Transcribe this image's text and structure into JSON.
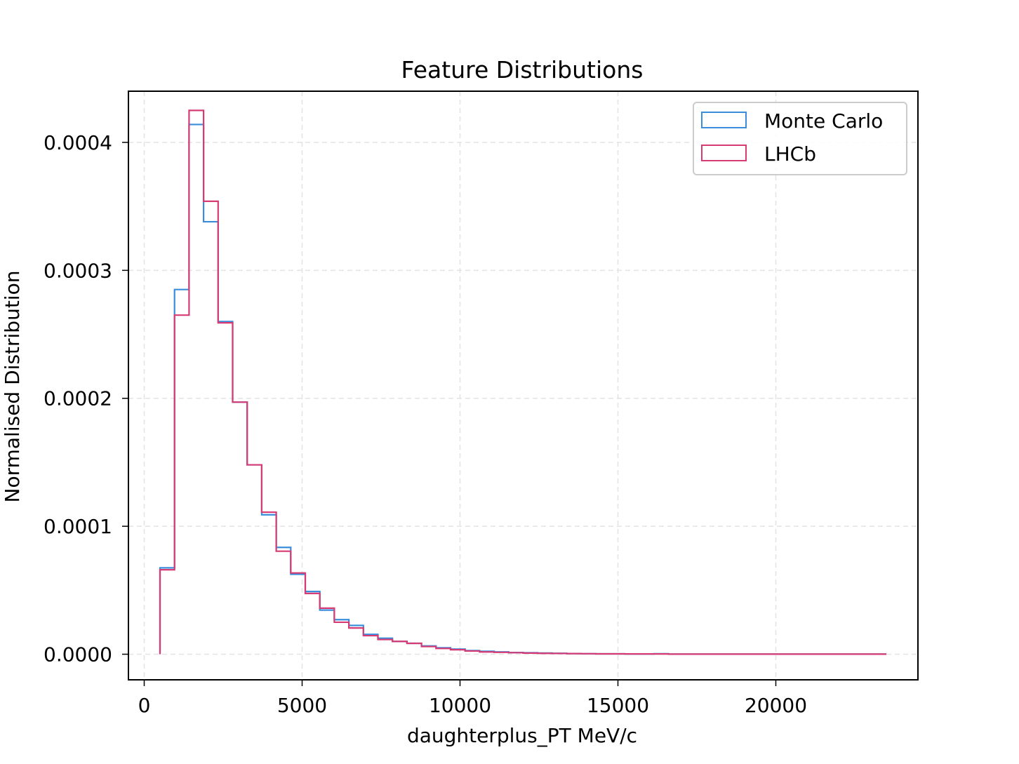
{
  "chart_data": {
    "type": "histogram",
    "title": "Feature Distributions",
    "xlabel": "daughterplus_PT MeV/c",
    "ylabel": "Normalised Distribution",
    "xlim": [
      -500,
      24500
    ],
    "ylim": [
      -2e-05,
      0.00044
    ],
    "xticks": [
      0,
      5000,
      10000,
      15000,
      20000
    ],
    "xtick_labels": [
      "0",
      "5000",
      "10000",
      "15000",
      "20000"
    ],
    "yticks": [
      0,
      0.0001,
      0.0002,
      0.0003,
      0.0004
    ],
    "ytick_labels": [
      "0.0000",
      "0.0001",
      "0.0002",
      "0.0003",
      "0.0004"
    ],
    "grid": true,
    "legend_position": "top-right",
    "bin_edges": [
      500,
      960,
      1420,
      1880,
      2340,
      2800,
      3260,
      3720,
      4180,
      4640,
      5100,
      5560,
      6020,
      6480,
      6940,
      7400,
      7860,
      8320,
      8780,
      9240,
      9700,
      10160,
      10620,
      11080,
      11540,
      12000,
      12460,
      12920,
      13380,
      13840,
      14300,
      14760,
      15220,
      15680,
      16140,
      16600,
      17060,
      17520,
      17980,
      18440,
      18900,
      19360,
      19820,
      20280,
      20740,
      21200,
      21660,
      22120,
      22580,
      23040,
      23500
    ],
    "series": [
      {
        "name": "Monte Carlo",
        "color": "#3a8ddb",
        "values": [
          6.75e-05,
          0.000285,
          0.000414,
          0.000338,
          0.00026,
          0.000197,
          0.000148,
          0.000109,
          8.35e-05,
          6.25e-05,
          4.9e-05,
          3.45e-05,
          2.7e-05,
          2.25e-05,
          1.55e-05,
          1.25e-05,
          1e-05,
          8.5e-06,
          6.5e-06,
          5e-06,
          4e-06,
          2.8e-06,
          2.3e-06,
          1.8e-06,
          1.3e-06,
          1.1e-06,
          9e-07,
          7e-07,
          5e-07,
          4e-07,
          3e-07,
          3e-07,
          2e-07,
          2e-07,
          4e-07,
          1e-07,
          1e-07,
          1e-07,
          1e-07,
          1e-07,
          1e-07,
          1e-07,
          1e-07,
          1e-07,
          1e-07,
          1e-07,
          1e-07,
          1e-07,
          1e-07,
          1e-07
        ]
      },
      {
        "name": "LHCb",
        "color": "#d63b74",
        "values": [
          6.6e-05,
          0.000265,
          0.000425,
          0.000354,
          0.000259,
          0.000197,
          0.000148,
          0.000111,
          8.05e-05,
          6.35e-05,
          4.75e-05,
          3.6e-05,
          2.5e-05,
          2.05e-05,
          1.45e-05,
          1.15e-05,
          1e-05,
          8.5e-06,
          6e-06,
          4.5e-06,
          3.5e-06,
          2.5e-06,
          1.8e-06,
          1.5e-06,
          1.2e-06,
          9e-07,
          7e-07,
          6e-07,
          5e-07,
          4e-07,
          3e-07,
          3e-07,
          2e-07,
          2e-07,
          2e-07,
          1e-07,
          1e-07,
          1e-07,
          1e-07,
          1e-07,
          1e-07,
          1e-07,
          1e-07,
          1e-07,
          1e-07,
          1e-07,
          1e-07,
          1e-07,
          1e-07,
          1e-07
        ]
      }
    ]
  }
}
